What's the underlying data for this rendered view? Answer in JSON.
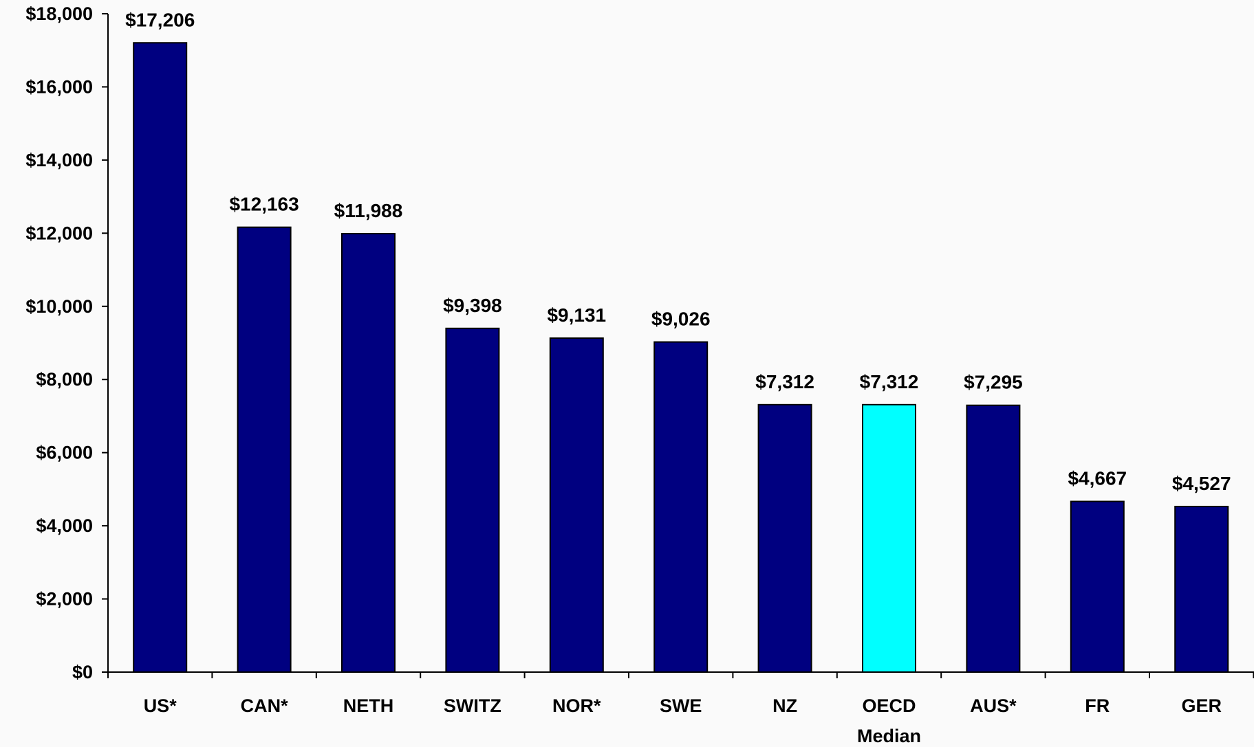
{
  "chart_data": {
    "type": "bar",
    "categories": [
      "US*",
      "CAN*",
      "NETH",
      "SWITZ",
      "NOR*",
      "SWE",
      "NZ",
      "OECD",
      "AUS*",
      "FR",
      "GER"
    ],
    "category_sublabels": [
      "",
      "",
      "",
      "",
      "",
      "",
      "",
      "Median",
      "",
      "",
      ""
    ],
    "values": [
      17206,
      12163,
      11988,
      9398,
      9131,
      9026,
      7312,
      7312,
      7295,
      4667,
      4527
    ],
    "value_labels": [
      "$17,206",
      "$12,163",
      "$11,988",
      "$9,398",
      "$9,131",
      "$9,026",
      "$7,312",
      "$7,312",
      "$7,295",
      "$4,667",
      "$4,527"
    ],
    "bar_colors": [
      "#000080",
      "#000080",
      "#000080",
      "#000080",
      "#000080",
      "#000080",
      "#000080",
      "#00ffff",
      "#000080",
      "#000080",
      "#000080"
    ],
    "highlight_category": "OECD",
    "ylim": [
      0,
      18000
    ],
    "y_ticks": [
      0,
      2000,
      4000,
      6000,
      8000,
      10000,
      12000,
      14000,
      16000,
      18000
    ],
    "y_tick_labels": [
      "$0",
      "$2,000",
      "$4,000",
      "$6,000",
      "$8,000",
      "$10,000",
      "$12,000",
      "$14,000",
      "$16,000",
      "$18,000"
    ],
    "title": "",
    "xlabel": "",
    "ylabel": "",
    "grid": false,
    "legend": "none"
  }
}
